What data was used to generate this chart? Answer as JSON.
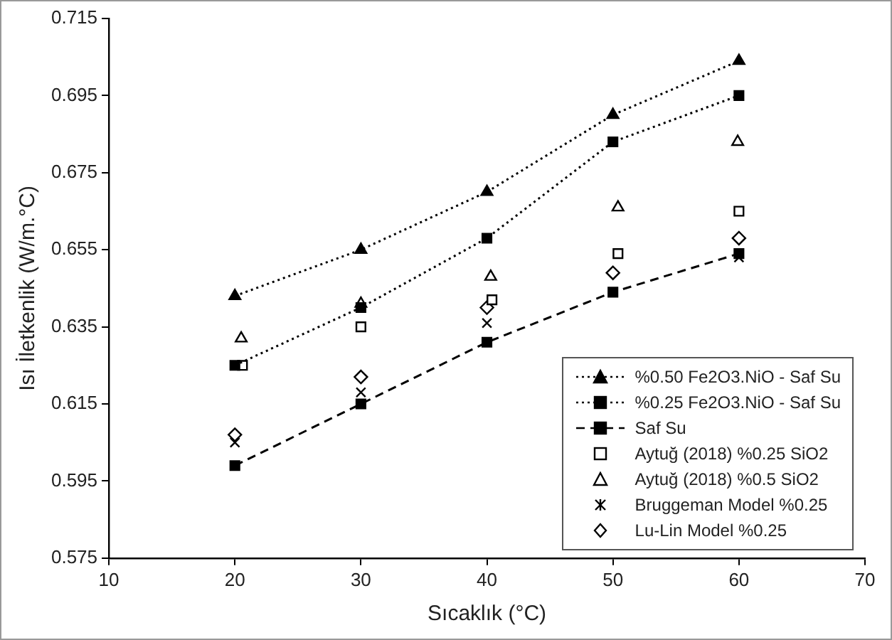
{
  "chart_data": {
    "type": "line",
    "xlabel": "Sıcaklık (°C)",
    "ylabel": "Isı İletkenlik (W/m.°C)",
    "x": [
      20,
      30,
      40,
      50,
      60
    ],
    "xlim": [
      10,
      70
    ],
    "xticks": [
      10,
      20,
      30,
      40,
      50,
      60,
      70
    ],
    "ylim": [
      0.575,
      0.715
    ],
    "yticks": [
      0.575,
      0.595,
      0.615,
      0.635,
      0.655,
      0.675,
      0.695,
      0.715
    ],
    "grid": false,
    "legend": "bottom right",
    "series": [
      {
        "name": "%0.50 Fe2O3.NiO - Saf Su",
        "color": "#000000",
        "marker": "triangle",
        "line_style": "dotted",
        "values": [
          0.643,
          0.655,
          0.67,
          0.69,
          0.704
        ]
      },
      {
        "name": "%0.25 Fe2O3.NiO - Saf Su",
        "color": "#000000",
        "marker": "square",
        "line_style": "dotted",
        "values": [
          0.625,
          0.64,
          0.658,
          0.683,
          0.695
        ]
      },
      {
        "name": "Saf Su",
        "color": "#000000",
        "marker": "square",
        "line_style": "dashed",
        "values": [
          0.599,
          0.615,
          0.631,
          0.644,
          0.654
        ]
      },
      {
        "name": "Aytuğ (2018) %0.25 SiO2",
        "type": "scatter",
        "color": "#000000",
        "marker": "square",
        "x": [
          20.6,
          30,
          40.4,
          50.4,
          60
        ],
        "values": [
          0.625,
          0.635,
          0.642,
          0.654,
          0.665
        ]
      },
      {
        "name": "Aytuğ (2018) %0.5 SiO2",
        "type": "scatter",
        "color": "#000000",
        "marker": "triangle",
        "x": [
          20.5,
          30,
          40.3,
          50.4,
          59.9
        ],
        "values": [
          0.632,
          0.641,
          0.648,
          0.666,
          0.683
        ]
      },
      {
        "name": "Bruggeman Model %0.25",
        "type": "scatter",
        "color": "#000000",
        "marker": "cross",
        "x": [
          20,
          30,
          40,
          50,
          60
        ],
        "values": [
          0.605,
          0.618,
          0.636,
          0.644,
          0.653
        ]
      },
      {
        "name": "Lu-Lin Model %0.25",
        "type": "scatter",
        "color": "#000000",
        "marker": "diamond",
        "x": [
          20,
          30,
          40,
          50,
          60
        ],
        "values": [
          0.607,
          0.622,
          0.64,
          0.649,
          0.658
        ]
      }
    ]
  }
}
